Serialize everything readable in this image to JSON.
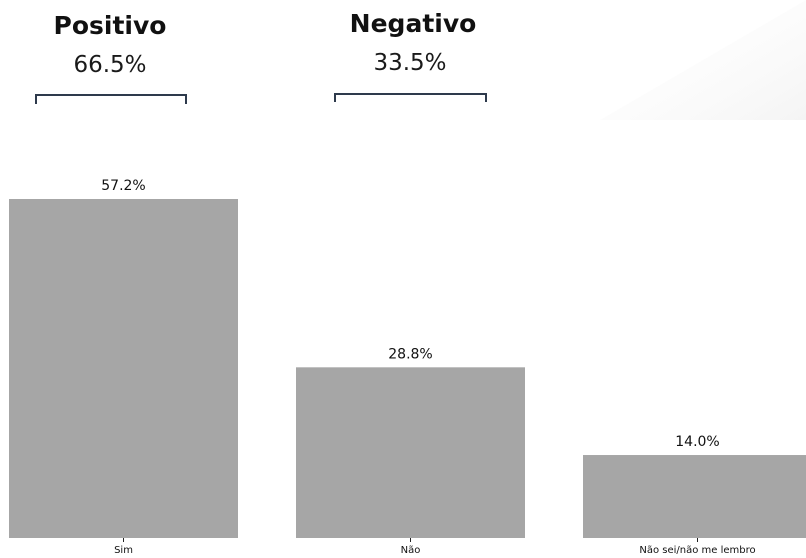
{
  "summary": [
    {
      "label": "Positivo",
      "value": "66.5%"
    },
    {
      "label": "Negativo",
      "value": "33.5%"
    }
  ],
  "chart_data": {
    "type": "bar",
    "categories": [
      "Sim",
      "Não",
      "Não sei/não me lembro"
    ],
    "values": [
      57.2,
      28.8,
      14.0
    ],
    "value_labels": [
      "57.2%",
      "28.8%",
      "14.0%"
    ],
    "ylim": [
      0,
      70
    ],
    "grid": false,
    "bar_color": "#a6a6a6",
    "bracket_color": "#2e3a4c"
  }
}
